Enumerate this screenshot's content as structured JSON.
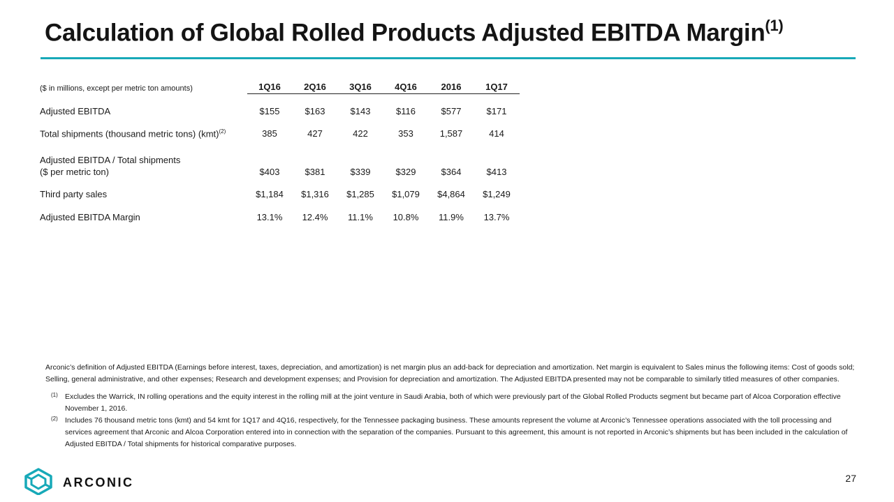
{
  "title": {
    "text": "Calculation of Global Rolled Products Adjusted EBITDA Margin",
    "sup": "(1)"
  },
  "table": {
    "unit_note": "($ in millions, except per metric ton amounts)",
    "columns": [
      "1Q16",
      "2Q16",
      "3Q16",
      "4Q16",
      "2016",
      "1Q17"
    ],
    "rows": [
      {
        "label": "Adjusted EBITDA",
        "values": [
          "$155",
          "$163",
          "$143",
          "$116",
          "$577",
          "$171"
        ]
      },
      {
        "label": "Total shipments (thousand metric tons) (kmt)",
        "sup": "(2)",
        "values": [
          "385",
          "427",
          "422",
          "353",
          "1,587",
          "414"
        ]
      },
      {
        "label": "Adjusted EBITDA / Total shipments",
        "label2": "($ per metric ton)",
        "values": [
          "$403",
          "$381",
          "$339",
          "$329",
          "$364",
          "$413"
        ]
      },
      {
        "label": "Third party sales",
        "values": [
          "$1,184",
          "$1,316",
          "$1,285",
          "$1,079",
          "$4,864",
          "$1,249"
        ]
      },
      {
        "label": "Adjusted EBITDA Margin",
        "values": [
          "13.1%",
          "12.4%",
          "11.1%",
          "10.8%",
          "11.9%",
          "13.7%"
        ]
      }
    ]
  },
  "footer": {
    "definition": "Arconic’s definition of Adjusted EBITDA (Earnings before interest, taxes, depreciation, and amortization) is net margin plus an add-back for depreciation and amortization.  Net margin is equivalent to Sales minus the following items: Cost of goods sold; Selling, general administrative, and other expenses; Research and development expenses; and Provision for depreciation and amortization.  The Adjusted EBITDA presented may not be comparable to similarly titled measures of other companies.",
    "notes": [
      {
        "mark": "(1)",
        "text": "Excludes the Warrick, IN rolling operations and the equity interest in the rolling mill at the joint venture in Saudi Arabia, both of which were previously part of the Global Rolled Products segment but became part of Alcoa Corporation effective November 1, 2016."
      },
      {
        "mark": "(2)",
        "text": "Includes 76 thousand metric tons (kmt) and 54 kmt for 1Q17 and 4Q16, respectively, for the Tennessee packaging business.  These amounts represent the volume at Arconic’s Tennessee operations associated with the toll processing and services agreement that Arconic and Alcoa Corporation entered into in connection with the separation of the companies.  Pursuant to this agreement, this amount is not reported in Arconic’s shipments but has been included in the calculation of Adjusted EBITDA / Total shipments for historical comparative purposes."
      }
    ]
  },
  "brand": {
    "name": "ARCONIC",
    "icon": "arconic-logo-icon",
    "accent": "#17a9b8"
  },
  "page_number": "27"
}
